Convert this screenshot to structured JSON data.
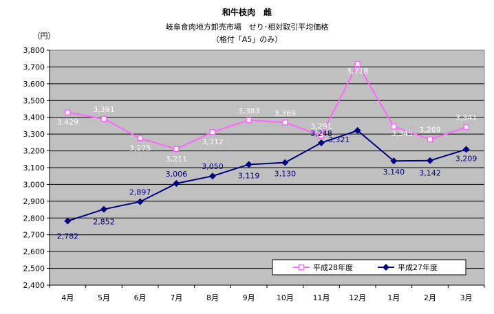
{
  "chart_data": {
    "type": "line",
    "title": "和牛枝肉　雌",
    "subtitle_1": "岐阜食肉地方卸売市場　せり･相対取引平均価格",
    "subtitle_2": "（格付「A5」のみ）",
    "y_unit": "（円）",
    "categories": [
      "4月",
      "5月",
      "6月",
      "7月",
      "8月",
      "9月",
      "10月",
      "11月",
      "12月",
      "1月",
      "2月",
      "3月"
    ],
    "ylim": [
      2400,
      3800
    ],
    "yticks": [
      "2,400",
      "2,500",
      "2,600",
      "2,700",
      "2,800",
      "2,900",
      "3,000",
      "3,100",
      "3,200",
      "3,300",
      "3,400",
      "3,500",
      "3,600",
      "3,700",
      "3,800"
    ],
    "grid": true,
    "legend_position": "bottom-right",
    "plot_background": "#c0c0c0",
    "series": [
      {
        "name": "平成28年度",
        "color": "#ff66ff",
        "marker": "square-open",
        "label_color": "#ffffff",
        "values": [
          3429,
          3391,
          3275,
          3211,
          3312,
          3383,
          3369,
          3291,
          3718,
          3345,
          3269,
          3341
        ],
        "labels": [
          "3,429",
          "3,391",
          "3,275",
          "3,211",
          "3,312",
          "3,383",
          "3,369",
          "3,291",
          "3,718",
          "3,345",
          "3,269",
          "3,341"
        ]
      },
      {
        "name": "平成27年度",
        "color": "#000080",
        "marker": "diamond",
        "label_color": "#000080",
        "values": [
          2782,
          2852,
          2897,
          3006,
          3050,
          3119,
          3130,
          3248,
          3321,
          3140,
          3142,
          3209
        ],
        "labels": [
          "2,782",
          "2,852",
          "2,897",
          "3,006",
          "3,050",
          "3,119",
          "3,130",
          "3,248",
          "3,321",
          "3,140",
          "3,142",
          "3,209"
        ]
      }
    ]
  }
}
